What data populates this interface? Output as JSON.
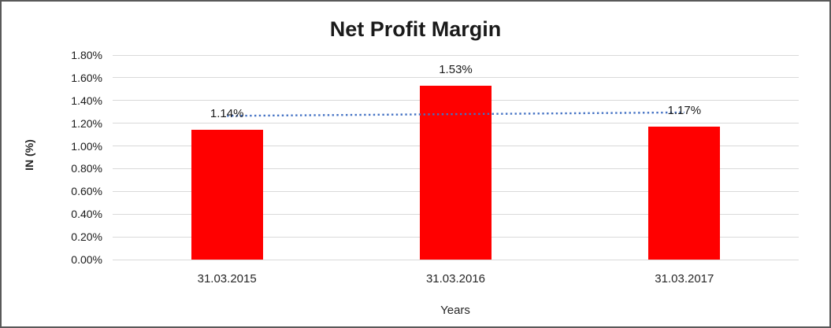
{
  "chart": {
    "title": "Net Profit Margin",
    "y_axis_title": "IN (%)",
    "x_axis_title": "Years",
    "y_tick_labels": [
      "1.80%",
      "1.60%",
      "1.40%",
      "1.20%",
      "1.00%",
      "0.80%",
      "0.60%",
      "0.40%",
      "0.20%",
      "0.00%"
    ]
  },
  "chart_data": {
    "type": "bar",
    "title": "Net Profit Margin",
    "categories": [
      "31.03.2015",
      "31.03.2016",
      "31.03.2017"
    ],
    "values": [
      1.14,
      1.53,
      1.17
    ],
    "data_labels": [
      "1.14%",
      "1.53%",
      "1.17%"
    ],
    "xlabel": "Years",
    "ylabel": "IN (%)",
    "ylim": [
      0,
      1.8
    ],
    "y_tick_step": 0.2,
    "grid": true,
    "legend": "none",
    "bar_color": "#ff0000",
    "trendline": {
      "type": "linear",
      "style": "dotted",
      "color": "#4472c4",
      "start_value": 1.265,
      "end_value": 1.295
    }
  }
}
